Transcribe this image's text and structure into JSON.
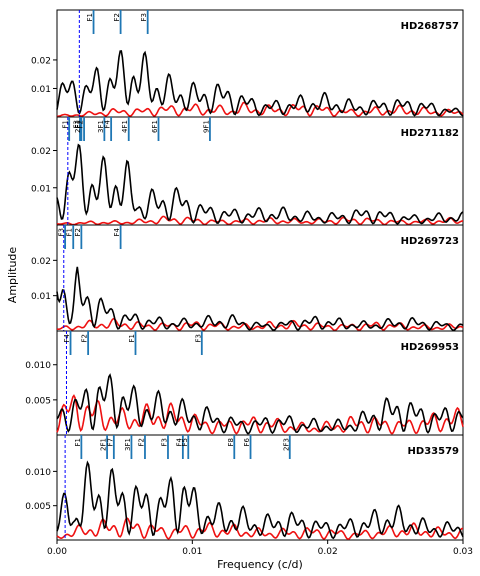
{
  "figure": {
    "ylabel": "Amplitude",
    "xlabel": "Frequency (c/d)"
  },
  "colors": {
    "observed": "#000000",
    "residual": "#ee1111",
    "frequency_marker": "#1f77b4",
    "threshold_line": "#0000ff"
  },
  "chart_data": {
    "type": "line",
    "shared_x": {
      "label": "Frequency (c/d)",
      "xlim": [
        0.0,
        0.03
      ],
      "ticks": [
        0.0,
        0.01,
        0.02,
        0.03
      ],
      "tick_labels": [
        "0.00",
        "0.01",
        "0.02",
        "0.03"
      ]
    },
    "panels": [
      {
        "star": "HD268757",
        "ylim": [
          0,
          0.0375
        ],
        "yticks": [
          0.01,
          0.02
        ],
        "ytick_labels": [
          "0.01",
          "0.02"
        ],
        "threshold_x": 0.00165,
        "markers": [
          {
            "label": "F1",
            "x": 0.0027
          },
          {
            "label": "F2",
            "x": 0.0047
          },
          {
            "label": "F3",
            "x": 0.0067
          }
        ],
        "envelope": [
          [
            0,
            0.0125
          ],
          [
            0.0007,
            0.0195
          ],
          [
            0.0013,
            0.0205
          ],
          [
            0.0022,
            0.0215
          ],
          [
            0.003,
            0.027
          ],
          [
            0.0037,
            0.025
          ],
          [
            0.0045,
            0.026
          ],
          [
            0.0055,
            0.0255
          ],
          [
            0.0063,
            0.024
          ],
          [
            0.007,
            0.022
          ],
          [
            0.008,
            0.0205
          ],
          [
            0.009,
            0.019
          ],
          [
            0.0095,
            0.02
          ],
          [
            0.0105,
            0.015
          ],
          [
            0.012,
            0.0135
          ],
          [
            0.0135,
            0.01
          ],
          [
            0.015,
            0.008
          ],
          [
            0.017,
            0.0095
          ],
          [
            0.0185,
            0.009
          ],
          [
            0.02,
            0.0085
          ],
          [
            0.022,
            0.0075
          ],
          [
            0.024,
            0.0095
          ],
          [
            0.026,
            0.007
          ],
          [
            0.028,
            0.0055
          ],
          [
            0.03,
            0.004
          ]
        ],
        "residual_envelope": [
          [
            0,
            0.001
          ],
          [
            0.002,
            0.002
          ],
          [
            0.004,
            0.003
          ],
          [
            0.006,
            0.004
          ],
          [
            0.0075,
            0.0065
          ],
          [
            0.009,
            0.0055
          ],
          [
            0.011,
            0.0045
          ],
          [
            0.013,
            0.0045
          ],
          [
            0.0135,
            0.0075
          ],
          [
            0.015,
            0.006
          ],
          [
            0.017,
            0.0045
          ],
          [
            0.0185,
            0.0055
          ],
          [
            0.02,
            0.005
          ],
          [
            0.022,
            0.004
          ],
          [
            0.0245,
            0.004
          ],
          [
            0.027,
            0.0045
          ],
          [
            0.03,
            0.0035
          ]
        ]
      },
      {
        "star": "HD271182",
        "ylim": [
          0,
          0.029
        ],
        "yticks": [
          0.01,
          0.02
        ],
        "ytick_labels": [
          "0.01",
          "0.02"
        ],
        "threshold_x": 0.0008,
        "markers": [
          {
            "label": "F1",
            "x": 0.0009
          },
          {
            "label": "F3",
            "x": 0.0017
          },
          {
            "label": "2F1",
            "x": 0.0018
          },
          {
            "label": "F2",
            "x": 0.002
          },
          {
            "label": "3F1",
            "x": 0.0035
          },
          {
            "label": "F4",
            "x": 0.004
          },
          {
            "label": "4F1",
            "x": 0.0053
          },
          {
            "label": "6F1",
            "x": 0.0075
          },
          {
            "label": "9F1",
            "x": 0.0113
          }
        ],
        "envelope": [
          [
            0,
            0.012
          ],
          [
            0.0008,
            0.022
          ],
          [
            0.0012,
            0.027
          ],
          [
            0.002,
            0.0195
          ],
          [
            0.003,
            0.019
          ],
          [
            0.0038,
            0.0225
          ],
          [
            0.0045,
            0.026
          ],
          [
            0.0052,
            0.025
          ],
          [
            0.006,
            0.012
          ],
          [
            0.007,
            0.012
          ],
          [
            0.008,
            0.011
          ],
          [
            0.009,
            0.011
          ],
          [
            0.01,
            0.008
          ],
          [
            0.011,
            0.0075
          ],
          [
            0.012,
            0.0075
          ],
          [
            0.0135,
            0.006
          ],
          [
            0.015,
            0.005
          ],
          [
            0.017,
            0.005
          ],
          [
            0.019,
            0.005
          ],
          [
            0.021,
            0.0045
          ],
          [
            0.023,
            0.005
          ],
          [
            0.025,
            0.0045
          ],
          [
            0.027,
            0.004
          ],
          [
            0.03,
            0.0035
          ]
        ],
        "residual_envelope": [
          [
            0,
            0.0005
          ],
          [
            0.002,
            0.001
          ],
          [
            0.004,
            0.0015
          ],
          [
            0.006,
            0.002
          ],
          [
            0.008,
            0.0025
          ],
          [
            0.01,
            0.0025
          ],
          [
            0.013,
            0.002
          ],
          [
            0.016,
            0.002
          ],
          [
            0.02,
            0.0025
          ],
          [
            0.024,
            0.002
          ],
          [
            0.03,
            0.002
          ]
        ]
      },
      {
        "star": "HD269723",
        "ylim": [
          0,
          0.03
        ],
        "yticks": [
          0.01,
          0.02
        ],
        "ytick_labels": [
          "0.01",
          "0.02"
        ],
        "threshold_x": 0.0005,
        "markers": [
          {
            "label": "F3",
            "x": 0.0006
          },
          {
            "label": "F1",
            "x": 0.0012
          },
          {
            "label": "F2",
            "x": 0.0018
          },
          {
            "label": "F4",
            "x": 0.0047
          }
        ],
        "envelope": [
          [
            0,
            0.025
          ],
          [
            0.0004,
            0.0265
          ],
          [
            0.0008,
            0.022
          ],
          [
            0.0012,
            0.018
          ],
          [
            0.0015,
            0.028
          ],
          [
            0.0018,
            0.0215
          ],
          [
            0.0025,
            0.018
          ],
          [
            0.0033,
            0.0125
          ],
          [
            0.004,
            0.0085
          ],
          [
            0.005,
            0.006
          ],
          [
            0.006,
            0.0055
          ],
          [
            0.0075,
            0.0055
          ],
          [
            0.009,
            0.005
          ],
          [
            0.011,
            0.0045
          ],
          [
            0.013,
            0.005
          ],
          [
            0.015,
            0.0035
          ],
          [
            0.017,
            0.004
          ],
          [
            0.019,
            0.0045
          ],
          [
            0.021,
            0.0045
          ],
          [
            0.023,
            0.004
          ],
          [
            0.026,
            0.004
          ],
          [
            0.03,
            0.0035
          ]
        ],
        "residual_envelope": [
          [
            0,
            0.0015
          ],
          [
            0.002,
            0.003
          ],
          [
            0.0035,
            0.0035
          ],
          [
            0.005,
            0.004
          ],
          [
            0.007,
            0.0035
          ],
          [
            0.009,
            0.003
          ],
          [
            0.012,
            0.003
          ],
          [
            0.015,
            0.003
          ],
          [
            0.018,
            0.003
          ],
          [
            0.022,
            0.003
          ],
          [
            0.026,
            0.0025
          ],
          [
            0.03,
            0.0025
          ]
        ]
      },
      {
        "star": "HD269953",
        "ylim": [
          0,
          0.0148
        ],
        "yticks": [
          0.005,
          0.01
        ],
        "ytick_labels": [
          "0.005",
          "0.010"
        ],
        "threshold_x": 0.0007,
        "markers": [
          {
            "label": "F4",
            "x": 0.001
          },
          {
            "label": "F2",
            "x": 0.0023
          },
          {
            "label": "F1",
            "x": 0.0058
          },
          {
            "label": "F3",
            "x": 0.0107
          }
        ],
        "envelope": [
          [
            0,
            0.0065
          ],
          [
            0.0008,
            0.0082
          ],
          [
            0.0015,
            0.0075
          ],
          [
            0.0025,
            0.0095
          ],
          [
            0.0035,
            0.0095
          ],
          [
            0.0048,
            0.0098
          ],
          [
            0.006,
            0.009
          ],
          [
            0.0068,
            0.0092
          ],
          [
            0.0078,
            0.0085
          ],
          [
            0.0085,
            0.0075
          ],
          [
            0.0095,
            0.005
          ],
          [
            0.0105,
            0.0045
          ],
          [
            0.012,
            0.004
          ],
          [
            0.014,
            0.0035
          ],
          [
            0.016,
            0.0035
          ],
          [
            0.018,
            0.0025
          ],
          [
            0.02,
            0.003
          ],
          [
            0.022,
            0.0035
          ],
          [
            0.024,
            0.0055
          ],
          [
            0.026,
            0.0065
          ],
          [
            0.028,
            0.0058
          ],
          [
            0.03,
            0.006
          ]
        ],
        "residual_envelope": [
          [
            0,
            0.005
          ],
          [
            0.001,
            0.0065
          ],
          [
            0.002,
            0.0065
          ],
          [
            0.0035,
            0.006
          ],
          [
            0.005,
            0.0055
          ],
          [
            0.007,
            0.005
          ],
          [
            0.009,
            0.0045
          ],
          [
            0.011,
            0.0035
          ],
          [
            0.014,
            0.003
          ],
          [
            0.017,
            0.0025
          ],
          [
            0.02,
            0.0025
          ],
          [
            0.023,
            0.003
          ],
          [
            0.026,
            0.0035
          ],
          [
            0.03,
            0.004
          ]
        ]
      },
      {
        "star": "HD33579",
        "ylim": [
          0,
          0.0153
        ],
        "yticks": [
          0.005,
          0.01
        ],
        "ytick_labels": [
          "0.005",
          "0.010"
        ],
        "threshold_x": 0.0006,
        "markers": [
          {
            "label": "F1",
            "x": 0.0018
          },
          {
            "label": "2F1",
            "x": 0.0037
          },
          {
            "label": "F7",
            "x": 0.0042
          },
          {
            "label": "3F1",
            "x": 0.0055
          },
          {
            "label": "F2",
            "x": 0.0065
          },
          {
            "label": "F3",
            "x": 0.0082
          },
          {
            "label": "F4",
            "x": 0.0093
          },
          {
            "label": "F5",
            "x": 0.0097
          },
          {
            "label": "F8",
            "x": 0.0131
          },
          {
            "label": "F6",
            "x": 0.0143
          },
          {
            "label": "2F3",
            "x": 0.0172
          }
        ],
        "envelope": [
          [
            0,
            0.0055
          ],
          [
            0.0008,
            0.0115
          ],
          [
            0.0013,
            0.006
          ],
          [
            0.002,
            0.0125
          ],
          [
            0.003,
            0.011
          ],
          [
            0.0037,
            0.0115
          ],
          [
            0.0045,
            0.0115
          ],
          [
            0.0055,
            0.012
          ],
          [
            0.0065,
            0.0125
          ],
          [
            0.0075,
            0.0105
          ],
          [
            0.0085,
            0.0125
          ],
          [
            0.0095,
            0.012
          ],
          [
            0.0105,
            0.006
          ],
          [
            0.012,
            0.0065
          ],
          [
            0.0135,
            0.0075
          ],
          [
            0.015,
            0.0045
          ],
          [
            0.017,
            0.0045
          ],
          [
            0.019,
            0.004
          ],
          [
            0.021,
            0.0045
          ],
          [
            0.023,
            0.0045
          ],
          [
            0.025,
            0.0055
          ],
          [
            0.027,
            0.0045
          ],
          [
            0.03,
            0.003
          ]
        ],
        "residual_envelope": [
          [
            0,
            0.001
          ],
          [
            0.001,
            0.0025
          ],
          [
            0.002,
            0.0035
          ],
          [
            0.004,
            0.0035
          ],
          [
            0.006,
            0.0035
          ],
          [
            0.008,
            0.003
          ],
          [
            0.01,
            0.003
          ],
          [
            0.012,
            0.0025
          ],
          [
            0.015,
            0.0025
          ],
          [
            0.018,
            0.002
          ],
          [
            0.022,
            0.002
          ],
          [
            0.026,
            0.0025
          ],
          [
            0.03,
            0.0025
          ]
        ]
      }
    ]
  }
}
